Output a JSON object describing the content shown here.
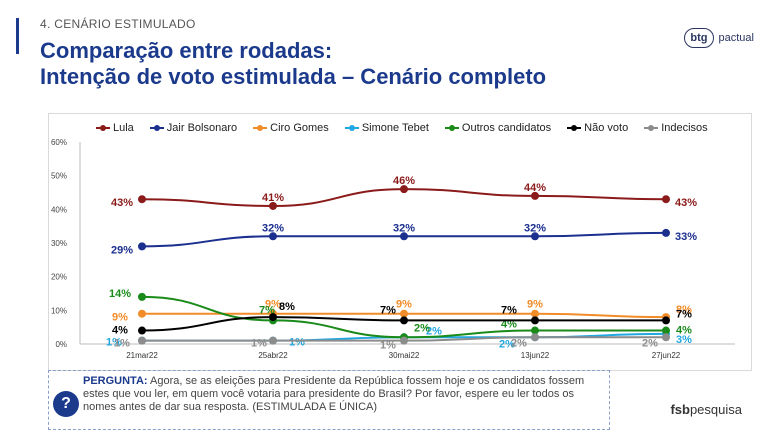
{
  "header": {
    "section": "4. CENÁRIO ESTIMULADO",
    "title_line1": "Comparação entre rodadas:",
    "title_line2": "Intenção de voto estimulada – Cenário completo",
    "logo_mark": "btg",
    "logo_text": "pactual"
  },
  "question": {
    "label": "PERGUNTA:",
    "text": "Agora, se as eleições para Presidente da República fossem hoje e os candidatos fossem estes que vou ler, em quem você votaria para presidente do Brasil? Por favor, espere eu ler todos os nomes antes de dar sua resposta. (ESTIMULADA E ÚNICA)"
  },
  "footer": {
    "brand_bold": "fsb",
    "brand_rest": "pesquisa"
  },
  "chart_data": {
    "type": "line",
    "x": [
      "21mar22",
      "25abr22",
      "30mai22",
      "13jun22",
      "27jun22"
    ],
    "ylim": [
      0,
      60
    ],
    "yticks": [
      "0%",
      "10%",
      "20%",
      "30%",
      "40%",
      "50%",
      "60%"
    ],
    "grid": false,
    "legend": "top",
    "series": [
      {
        "name": "Lula",
        "color": "#8b1a1a",
        "values": [
          43,
          41,
          46,
          44,
          43
        ],
        "labels": [
          "43%",
          "41%",
          "46%",
          "44%",
          "43%"
        ]
      },
      {
        "name": "Jair Bolsonaro",
        "color": "#1b2f8f",
        "values": [
          29,
          32,
          32,
          32,
          33
        ],
        "labels": [
          "29%",
          "32%",
          "32%",
          "32%",
          "33%"
        ]
      },
      {
        "name": "Ciro Gomes",
        "color": "#f28c28",
        "values": [
          9,
          9,
          9,
          9,
          8
        ],
        "labels": [
          "9%",
          "9%",
          "9%",
          "9%",
          "8%"
        ]
      },
      {
        "name": "Simone Tebet",
        "color": "#22a7e0",
        "values": [
          1,
          1,
          2,
          2,
          3
        ],
        "labels": [
          "1%",
          "1%",
          "2%",
          "2%",
          "3%"
        ]
      },
      {
        "name": "Outros candidatos",
        "color": "#1a8a1a",
        "values": [
          14,
          7,
          2,
          4,
          4
        ],
        "labels": [
          "14%",
          "7%",
          "2%",
          "4%",
          "4%"
        ]
      },
      {
        "name": "Não voto",
        "color": "#000000",
        "values": [
          4,
          8,
          7,
          7,
          7
        ],
        "labels": [
          "4%",
          "8%",
          "7%",
          "7%",
          "7%"
        ]
      },
      {
        "name": "Indecisos",
        "color": "#8c8c8c",
        "values": [
          1,
          1,
          1,
          2,
          2
        ],
        "labels": [
          "1%",
          "1%",
          "1%",
          "2%",
          "2%"
        ]
      }
    ]
  }
}
